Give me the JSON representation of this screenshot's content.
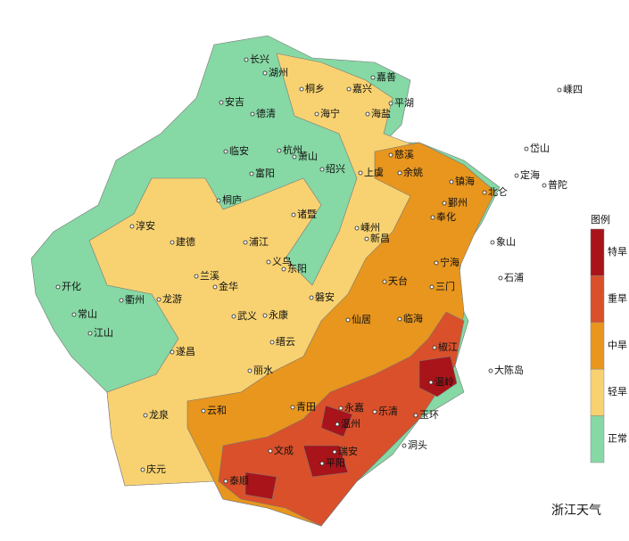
{
  "legend": {
    "title": "图例",
    "items": [
      {
        "label": "特旱",
        "color": "#a8141a"
      },
      {
        "label": "重旱",
        "color": "#d9502a"
      },
      {
        "label": "中旱",
        "color": "#e8961e"
      },
      {
        "label": "轻旱",
        "color": "#f8d271"
      },
      {
        "label": "正常",
        "color": "#86d8a4"
      }
    ]
  },
  "cities": [
    "长兴",
    "湖州",
    "嘉善",
    "桐乡",
    "嘉兴",
    "平湖",
    "安吉",
    "德清",
    "海宁",
    "海盐",
    "嵊四",
    "临安",
    "杭州",
    "萧山",
    "慈溪",
    "岱山",
    "绍兴",
    "上虞",
    "余姚",
    "富阳",
    "定海",
    "普陀",
    "镇海",
    "北仑",
    "桐庐",
    "诸暨",
    "鄞州",
    "奉化",
    "淳安",
    "嵊州",
    "新昌",
    "建德",
    "浦江",
    "象山",
    "义乌",
    "宁海",
    "兰溪",
    "东阳",
    "石浦",
    "开化",
    "金华",
    "天台",
    "三门",
    "龙游",
    "衢州",
    "磐安",
    "常山",
    "武义",
    "永康",
    "仙居",
    "临海",
    "江山",
    "缙云",
    "遂昌",
    "椒江",
    "大陈岛",
    "丽水",
    "温岭",
    "龙泉",
    "云和",
    "青田",
    "永嘉",
    "温州",
    "乐清",
    "玉环",
    "洞头",
    "文成",
    "瑞安",
    "庆元",
    "泰顺",
    "平阳"
  ],
  "watermark": "浙江天气"
}
